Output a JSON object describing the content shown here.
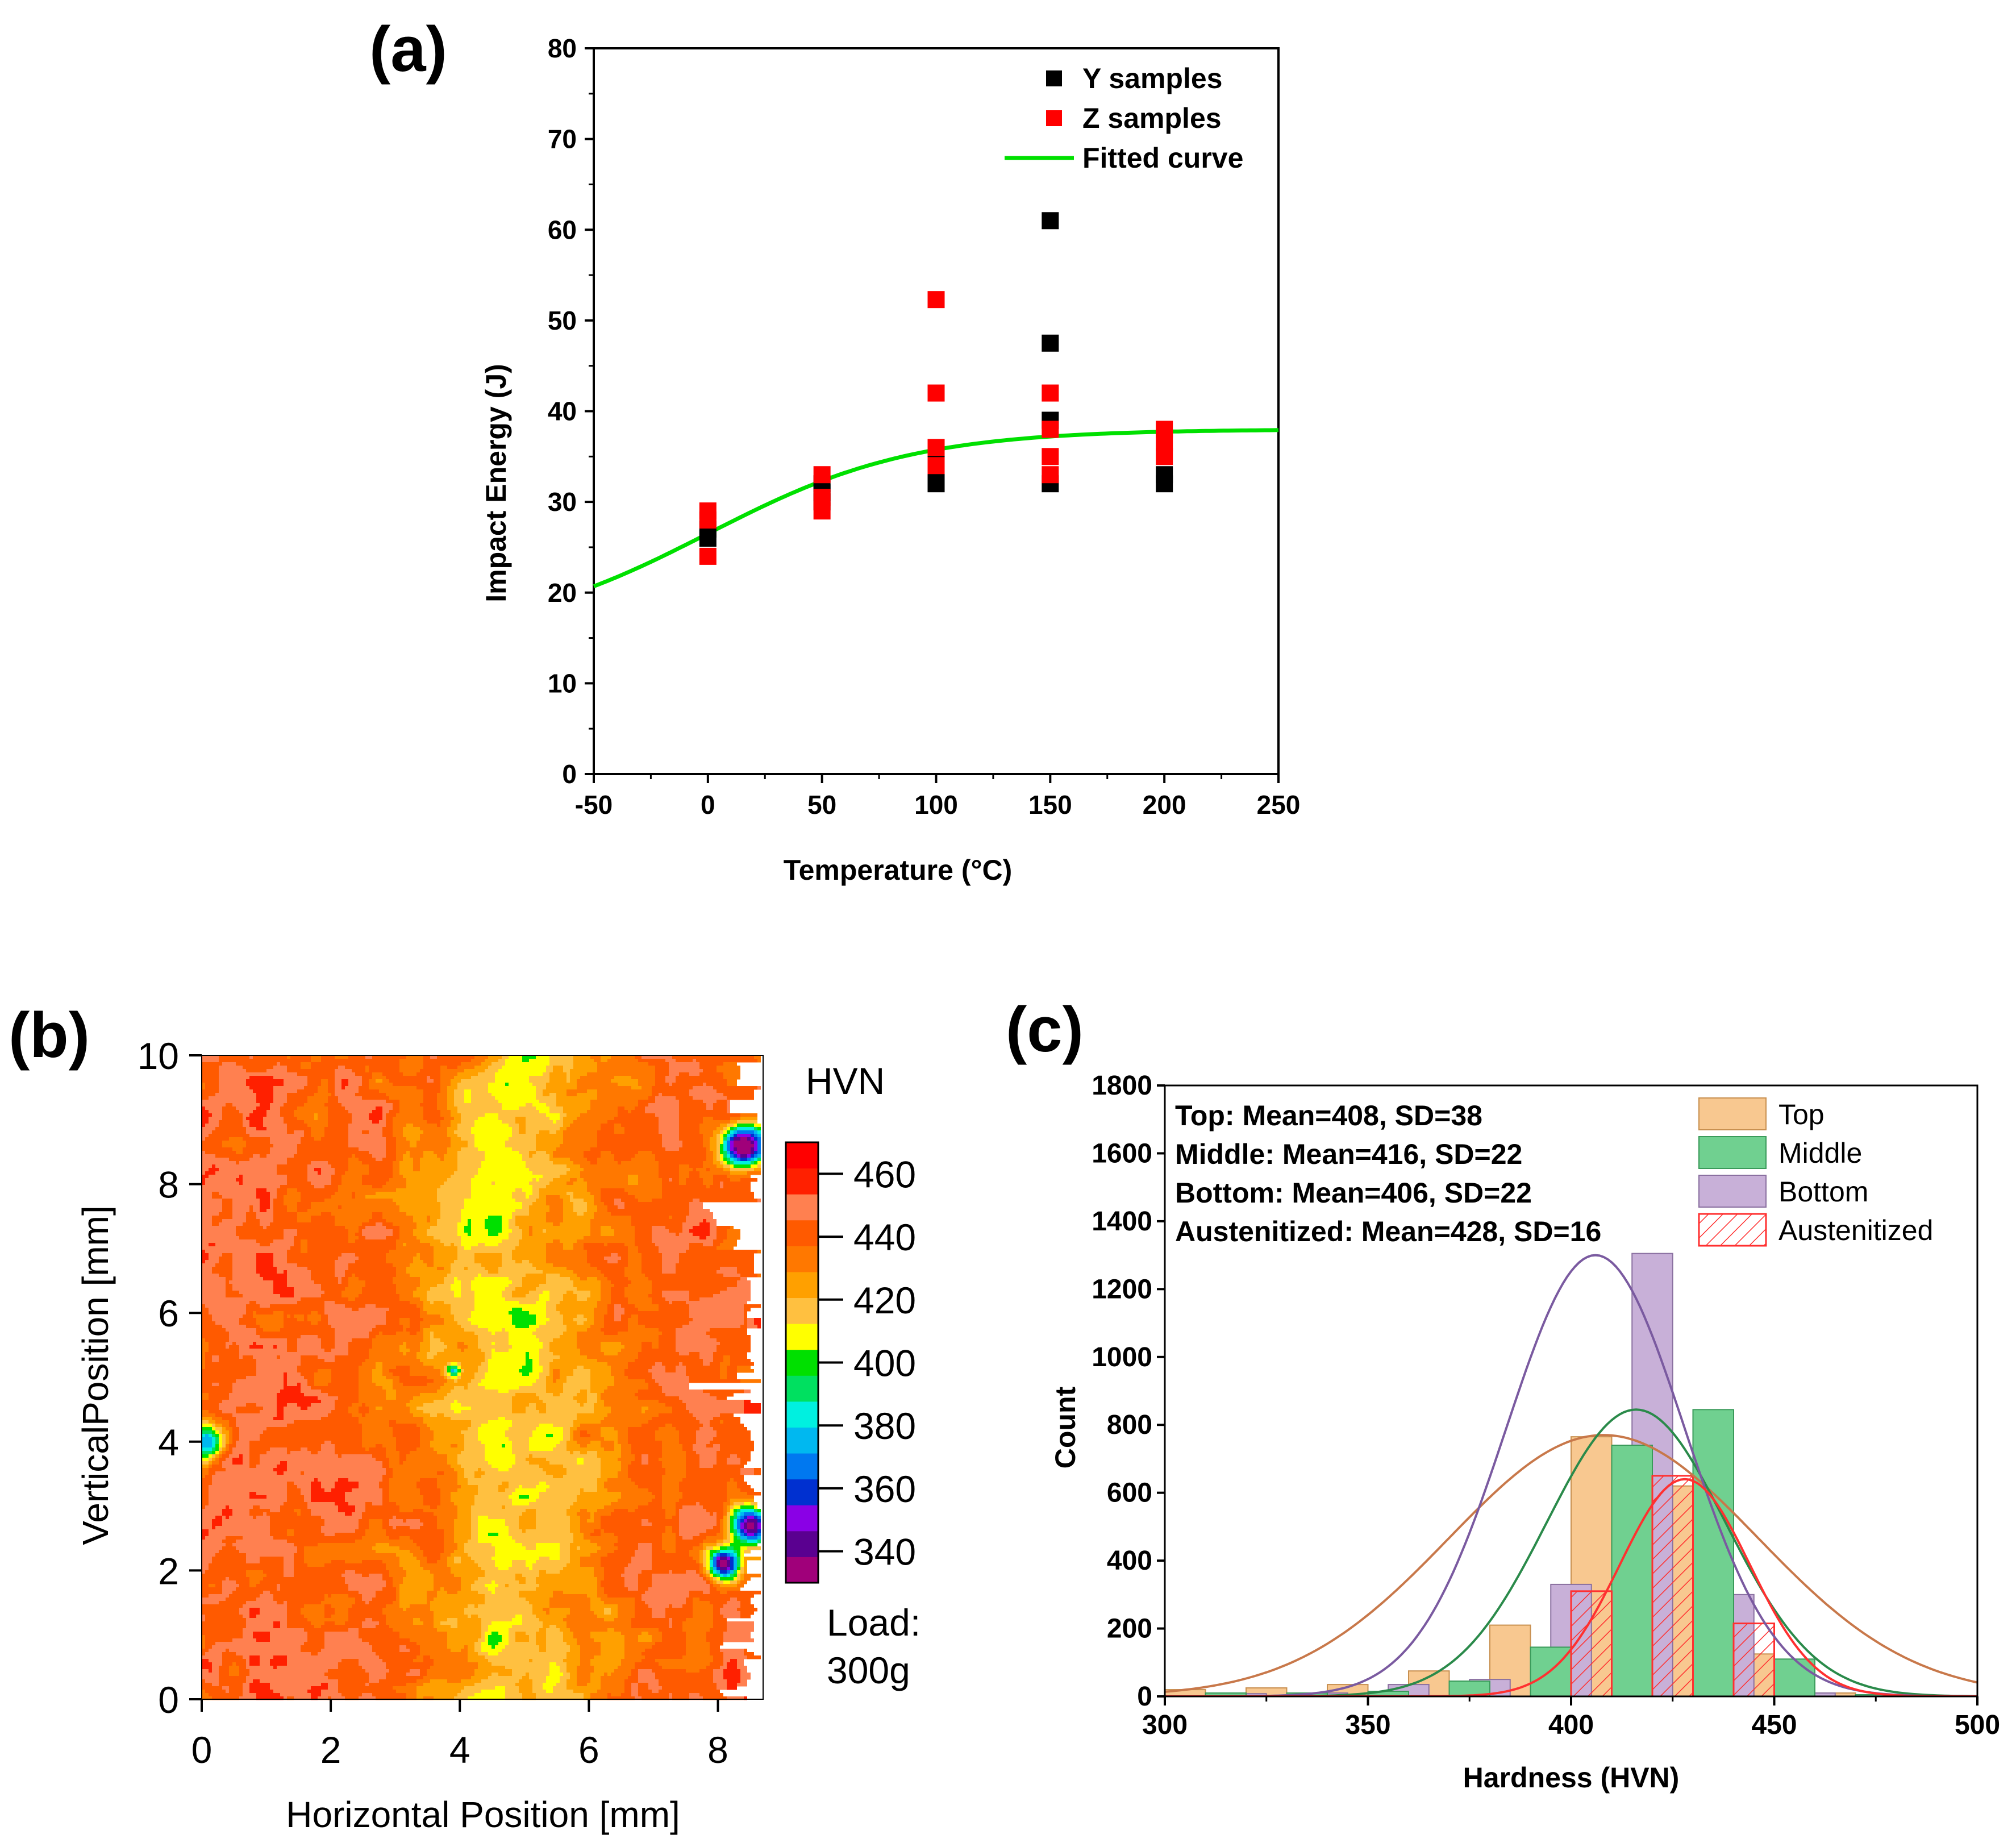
{
  "chart_data": [
    {
      "panel_label": "(a)",
      "type": "scatter",
      "xlabel": "Temperature (°C)",
      "ylabel": "Impact Energy (J)",
      "xlim": [
        -50,
        250
      ],
      "ylim": [
        0,
        80
      ],
      "x_ticks": [
        "-50",
        "0",
        "50",
        "100",
        "150",
        "200",
        "250"
      ],
      "y_ticks": [
        "0",
        "10",
        "20",
        "30",
        "40",
        "50",
        "60",
        "70",
        "80"
      ],
      "legend_position": "top-right",
      "colors": {
        "y_samples": "#000000",
        "z_samples": "#ff0000",
        "fit": "#00e000"
      },
      "series": [
        {
          "name": "Y samples",
          "marker": "square",
          "points": [
            [
              0,
              26
            ],
            [
              0,
              27
            ],
            [
              50,
              30
            ],
            [
              50,
              31
            ],
            [
              50,
              32
            ],
            [
              100,
              32
            ],
            [
              100,
              33
            ],
            [
              100,
              35
            ],
            [
              150,
              32
            ],
            [
              150,
              39
            ],
            [
              150,
              47.5
            ],
            [
              150,
              61
            ],
            [
              200,
              32
            ],
            [
              200,
              33
            ]
          ]
        },
        {
          "name": "Z samples",
          "marker": "square",
          "points": [
            [
              0,
              24
            ],
            [
              0,
              28
            ],
            [
              0,
              29
            ],
            [
              50,
              29
            ],
            [
              50,
              30.5
            ],
            [
              50,
              33
            ],
            [
              100,
              34
            ],
            [
              100,
              36
            ],
            [
              100,
              42
            ],
            [
              100,
              52.3
            ],
            [
              150,
              33
            ],
            [
              150,
              35
            ],
            [
              150,
              38
            ],
            [
              150,
              42
            ],
            [
              200,
              35
            ],
            [
              200,
              36.5
            ],
            [
              200,
              38
            ]
          ]
        },
        {
          "name": "Fitted curve",
          "line": true,
          "model": {
            "upper": 38,
            "lower": 15,
            "x0": 0,
            "w": 45
          }
        }
      ]
    },
    {
      "panel_label": "(b)",
      "type": "heatmap",
      "xlabel": "Horizontal Position [mm]",
      "ylabel": "VerticalPosition [mm]",
      "xlim": [
        0,
        8.7
      ],
      "ylim": [
        0,
        10
      ],
      "x_ticks": [
        "0",
        "2",
        "4",
        "6",
        "8"
      ],
      "y_ticks": [
        "0",
        "2",
        "4",
        "6",
        "8",
        "10"
      ],
      "colorbar_title": "HVN",
      "colorbar_ticks": [
        "340",
        "360",
        "380",
        "400",
        "420",
        "440",
        "460"
      ],
      "colorbar_range": [
        330,
        470
      ],
      "colorbar_colors": [
        "#a0007a",
        "#5a0090",
        "#8a00e6",
        "#0030d0",
        "#0078f0",
        "#00b8f0",
        "#00f0e0",
        "#00e060",
        "#00e000",
        "#ffff00",
        "#ffc040",
        "#ffa000",
        "#ff7800",
        "#ff5a00",
        "#ff8050",
        "#ff2000",
        "#ff0000"
      ],
      "note_lines": [
        "Load:",
        "300g"
      ]
    },
    {
      "panel_label": "(c)",
      "type": "bar",
      "xlabel": "Hardness (HVN)",
      "ylabel": "Count",
      "xlim": [
        300,
        500
      ],
      "ylim": [
        0,
        1800
      ],
      "x_ticks": [
        "300",
        "350",
        "400",
        "450",
        "500"
      ],
      "y_ticks": [
        "0",
        "200",
        "400",
        "600",
        "800",
        "1000",
        "1200",
        "1400",
        "1600",
        "1800"
      ],
      "bin_width": 10,
      "stats": [
        "Top: Mean=408, SD=38",
        "Middle: Mean=416, SD=22",
        "Bottom: Mean=406, SD=22",
        "Austenitized: Mean=428, SD=16"
      ],
      "legend_position": "top-right",
      "series": [
        {
          "name": "Top",
          "color": "#f8c890",
          "edge": "#c89050",
          "curve_color": "#c8784a",
          "mean": 408,
          "sd": 38,
          "curve_peak": 770,
          "bins": [
            [
              300,
              20
            ],
            [
              320,
              25
            ],
            [
              340,
              35
            ],
            [
              360,
              75
            ],
            [
              380,
              210
            ],
            [
              400,
              765
            ],
            [
              420,
              620
            ],
            [
              440,
              125
            ],
            [
              460,
              10
            ]
          ]
        },
        {
          "name": "Middle",
          "color": "#70d090",
          "edge": "#3a9a5a",
          "curve_color": "#2a8a4a",
          "mean": 416,
          "sd": 22,
          "curve_peak": 845,
          "bins": [
            [
              310,
              10
            ],
            [
              330,
              10
            ],
            [
              350,
              15
            ],
            [
              370,
              45
            ],
            [
              390,
              145
            ],
            [
              410,
              740
            ],
            [
              430,
              845
            ],
            [
              450,
              110
            ],
            [
              470,
              5
            ]
          ]
        },
        {
          "name": "Bottom",
          "color": "#c8b0d8",
          "edge": "#8a70a0",
          "curve_color": "#7a5aa0",
          "mean": 406,
          "sd": 22,
          "curve_peak": 1300,
          "bins": [
            [
              315,
              8
            ],
            [
              335,
              10
            ],
            [
              355,
              35
            ],
            [
              375,
              50
            ],
            [
              395,
              330
            ],
            [
              415,
              1305
            ],
            [
              435,
              300
            ],
            [
              455,
              10
            ]
          ]
        },
        {
          "name": "Austenitized",
          "color": "#ff3030",
          "hatched": true,
          "curve_color": "#ff3030",
          "mean": 428,
          "sd": 16,
          "curve_peak": 640,
          "bins": [
            [
              400,
              310
            ],
            [
              420,
              650
            ],
            [
              440,
              215
            ]
          ]
        }
      ]
    }
  ]
}
